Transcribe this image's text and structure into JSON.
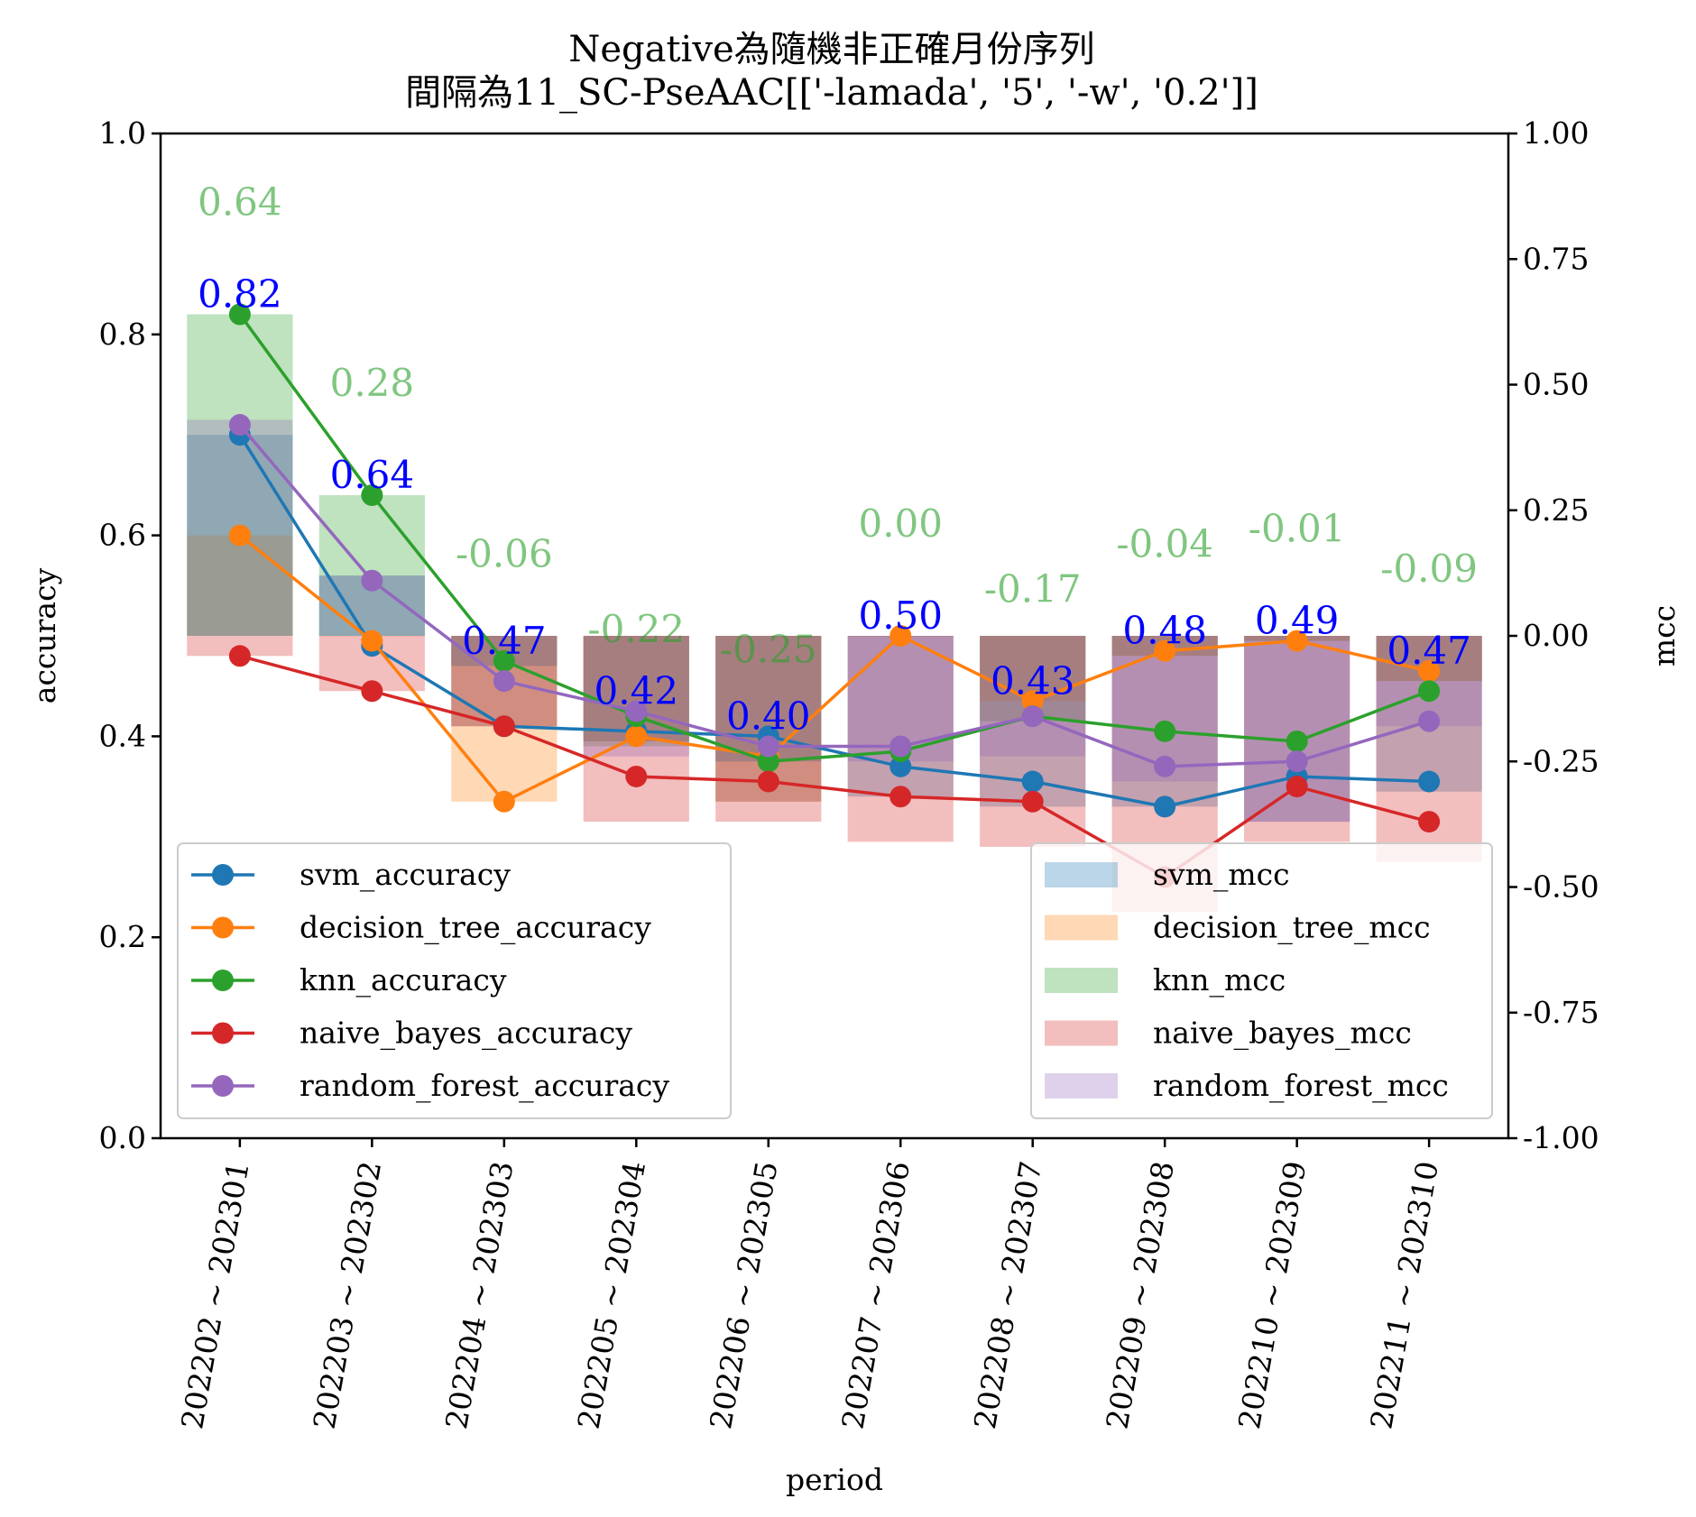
{
  "chart_data": {
    "type": "line",
    "title": [
      "Negative為隨機非正確月份序列",
      "間隔為11_SC-PseAAC[['-lamada', '5', '-w', '0.2']]"
    ],
    "xlabel": "period",
    "ylabel": "accuracy",
    "y2label": "mcc",
    "ylim": [
      0,
      1.0
    ],
    "y2lim": [
      -1.0,
      1.0
    ],
    "yticks": [
      "0.0",
      "0.2",
      "0.4",
      "0.6",
      "0.8",
      "1.0"
    ],
    "y2ticks": [
      "-1.00",
      "-0.75",
      "-0.50",
      "-0.25",
      "0.00",
      "0.25",
      "0.50",
      "0.75",
      "1.00"
    ],
    "categories": [
      "202202 ~ 202301",
      "202203 ~ 202302",
      "202204 ~ 202303",
      "202205 ~ 202304",
      "202206 ~ 202305",
      "202207 ~ 202306",
      "202208 ~ 202307",
      "202209 ~ 202308",
      "202210 ~ 202309",
      "202211 ~ 202310"
    ],
    "accuracy_series": [
      {
        "name": "svm_accuracy",
        "color": "#1f77b4",
        "values": [
          0.7,
          0.49,
          0.41,
          0.405,
          0.4,
          0.37,
          0.355,
          0.33,
          0.36,
          0.355
        ]
      },
      {
        "name": "decision_tree_accuracy",
        "color": "#ff7f0e",
        "values": [
          0.6,
          0.495,
          0.335,
          0.4,
          0.38,
          0.5,
          0.435,
          0.485,
          0.495,
          0.465
        ]
      },
      {
        "name": "knn_accuracy",
        "color": "#2ca02c",
        "values": [
          0.82,
          0.64,
          0.475,
          0.42,
          0.375,
          0.385,
          0.42,
          0.405,
          0.395,
          0.445
        ]
      },
      {
        "name": "naive_bayes_accuracy",
        "color": "#d62728",
        "values": [
          0.48,
          0.445,
          0.41,
          0.36,
          0.355,
          0.34,
          0.335,
          0.26,
          0.35,
          0.315
        ]
      },
      {
        "name": "random_forest_accuracy",
        "color": "#9467bd",
        "values": [
          0.71,
          0.555,
          0.455,
          0.425,
          0.39,
          0.39,
          0.42,
          0.37,
          0.375,
          0.415
        ]
      }
    ],
    "mcc_series": [
      {
        "name": "svm_mcc",
        "color": "#1f77b4",
        "values": [
          0.4,
          0.12,
          -0.18,
          -0.21,
          -0.33,
          -0.32,
          -0.34,
          -0.34,
          -0.37,
          -0.31
        ]
      },
      {
        "name": "decision_tree_mcc",
        "color": "#ff7f0e",
        "values": [
          0.2,
          0.0,
          -0.33,
          -0.21,
          -0.33,
          0.0,
          -0.13,
          -0.04,
          -0.01,
          -0.09
        ]
      },
      {
        "name": "knn_mcc",
        "color": "#2ca02c",
        "values": [
          0.64,
          0.28,
          -0.06,
          -0.22,
          -0.25,
          0.0,
          -0.17,
          -0.04,
          -0.01,
          -0.09
        ]
      },
      {
        "name": "naive_bayes_mcc",
        "color": "#d62728",
        "values": [
          -0.04,
          -0.11,
          -0.18,
          -0.37,
          -0.37,
          -0.41,
          -0.42,
          -0.55,
          -0.41,
          -0.45
        ]
      },
      {
        "name": "random_forest_mcc",
        "color": "#9467bd",
        "values": [
          0.43,
          0.12,
          -0.06,
          -0.24,
          -0.25,
          -0.25,
          -0.24,
          -0.29,
          -0.37,
          -0.18
        ]
      }
    ],
    "accuracy_labels": [
      "0.82",
      "0.64",
      "0.47",
      "0.42",
      "0.40",
      "0.50",
      "0.43",
      "0.48",
      "0.49",
      "0.47"
    ],
    "mcc_labels": [
      "0.64",
      "0.28",
      "-0.06",
      "-0.22",
      "-0.25",
      "0.00",
      "-0.17",
      "-0.04",
      "-0.01",
      "-0.09"
    ],
    "legend_left_position": "lower-left",
    "legend_right_position": "lower-right",
    "grid": false
  }
}
